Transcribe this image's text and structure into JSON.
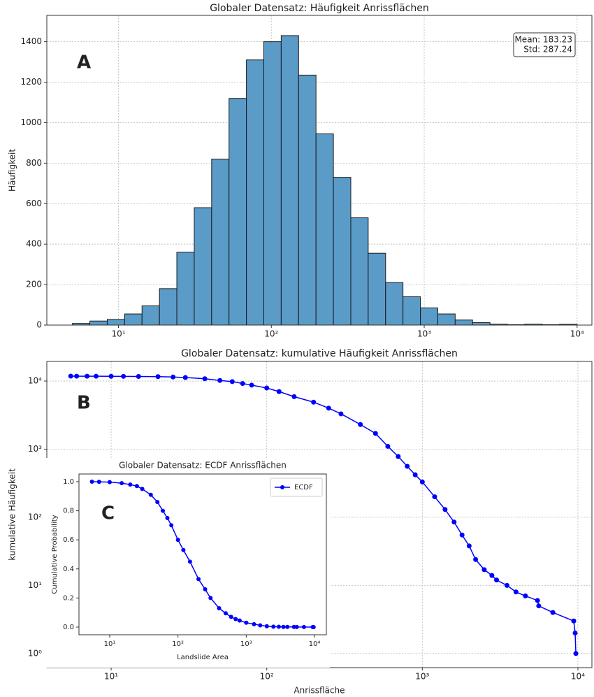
{
  "chart_data": [
    {
      "type": "histogram",
      "title": "Globaler Datensatz: Häufigkeit Anrissflächen",
      "panel_label": "A",
      "ylabel": "Häufigkeit",
      "annotation": [
        "Mean: 183.23",
        "Std: 287.24"
      ],
      "bins": [
        5.0,
        6.5,
        8.45,
        10.98,
        14.26,
        18.54,
        24.09,
        31.31,
        40.69,
        52.88,
        68.71,
        89.29,
        116.0,
        150.8,
        196.0,
        254.7,
        331.0,
        430.1,
        559.0,
        726.4,
        944.1,
        1227,
        1594,
        2072,
        2693,
        3499,
        4548,
        5910,
        7680,
        10000
      ],
      "values": [
        8,
        20,
        28,
        55,
        95,
        180,
        360,
        580,
        820,
        1120,
        1310,
        1400,
        1430,
        1235,
        945,
        730,
        530,
        355,
        210,
        140,
        85,
        55,
        25,
        12,
        5,
        2,
        5,
        2,
        4
      ],
      "color": "#5a9bc8",
      "edgecolor": "#1a1a1a",
      "xscale": "log",
      "xlim": [
        3.4,
        12500
      ],
      "xticks": [
        {
          "value": 10,
          "label": "10¹"
        },
        {
          "value": 100,
          "label": "10²"
        },
        {
          "value": 1000,
          "label": "10³"
        },
        {
          "value": 10000,
          "label": "10⁴"
        }
      ],
      "ylim": [
        0,
        1530
      ],
      "yticks": [
        0,
        200,
        400,
        600,
        800,
        1000,
        1200,
        1400
      ],
      "grid": true
    },
    {
      "type": "line",
      "markers": true,
      "title": "Globaler Datensatz: kumulative Häufigkeit Anrissflächen",
      "panel_label": "B",
      "xlabel": "Anrissfläche",
      "ylabel": "kumulative Häufigkeit",
      "color": "#0000ff",
      "x": [
        5.5,
        6,
        7,
        8,
        10,
        12,
        15,
        20,
        25,
        30,
        40,
        50,
        60,
        70,
        80,
        100,
        120,
        150,
        200,
        250,
        300,
        400,
        500,
        600,
        700,
        800,
        900,
        1000,
        1200,
        1400,
        1600,
        1800,
        2000,
        2200,
        2500,
        2800,
        3000,
        3500,
        4000,
        4600,
        5500,
        5600,
        6900,
        9400,
        9600,
        9700
      ],
      "values": [
        11800,
        11790,
        11780,
        11760,
        11740,
        11720,
        11680,
        11600,
        11450,
        11250,
        10800,
        10200,
        9800,
        9200,
        8700,
        7900,
        7000,
        5900,
        4900,
        4000,
        3300,
        2300,
        1700,
        1100,
        780,
        560,
        420,
        330,
        200,
        130,
        85,
        55,
        38,
        24,
        17,
        14,
        12,
        10,
        8,
        7,
        6,
        5,
        4,
        3,
        2,
        1
      ],
      "xscale": "log",
      "yscale": "log",
      "xlim": [
        3.86,
        12300
      ],
      "xticks": [
        {
          "value": 10,
          "label": "10¹"
        },
        {
          "value": 100,
          "label": "10²"
        },
        {
          "value": 1000,
          "label": "10³"
        },
        {
          "value": 10000,
          "label": "10⁴"
        }
      ],
      "ylim": [
        0.62,
        19400
      ],
      "yticks": [
        {
          "value": 1,
          "label": "10⁰"
        },
        {
          "value": 10,
          "label": "10¹"
        },
        {
          "value": 100,
          "label": "10²"
        },
        {
          "value": 1000,
          "label": "10³"
        },
        {
          "value": 10000,
          "label": "10⁴"
        }
      ],
      "grid": true
    },
    {
      "type": "line",
      "markers": true,
      "title": "Globaler Datensatz: ECDF Anrissflächen",
      "panel_label": "C",
      "xlabel": "Landslide Area",
      "ylabel": "Cumulative Probability",
      "legend": "upper right",
      "x": [
        5.5,
        7,
        10,
        15,
        20,
        25,
        30,
        40,
        50,
        60,
        70,
        80,
        100,
        120,
        150,
        200,
        250,
        300,
        400,
        500,
        600,
        700,
        800,
        1000,
        1300,
        1600,
        2000,
        2500,
        3000,
        3500,
        4000,
        5000,
        5500,
        7000,
        9400,
        9700
      ],
      "series": [
        {
          "name": "ECDF",
          "color": "#0000ff",
          "values": [
            1.0,
            0.999,
            0.997,
            0.99,
            0.98,
            0.97,
            0.95,
            0.91,
            0.86,
            0.8,
            0.75,
            0.7,
            0.6,
            0.53,
            0.45,
            0.33,
            0.26,
            0.2,
            0.13,
            0.095,
            0.07,
            0.055,
            0.045,
            0.03,
            0.02,
            0.012,
            0.006,
            0.003,
            0.002,
            0.001,
            0.001,
            0.001,
            0.0005,
            0.0003,
            0.0002,
            0.0001
          ]
        }
      ],
      "xscale": "log",
      "xlim": [
        3.55,
        14900
      ],
      "xticks": [
        {
          "value": 10,
          "label": "10¹"
        },
        {
          "value": 100,
          "label": "10²"
        },
        {
          "value": 1000,
          "label": "10³"
        },
        {
          "value": 10000,
          "label": "10⁴"
        }
      ],
      "ylim": [
        -0.053,
        1.053
      ],
      "yticks": [
        {
          "value": 0,
          "label": "0.0"
        },
        0.2,
        0.4,
        0.6,
        0.8,
        {
          "value": 1,
          "label": "1.0"
        }
      ],
      "grid": false
    }
  ]
}
